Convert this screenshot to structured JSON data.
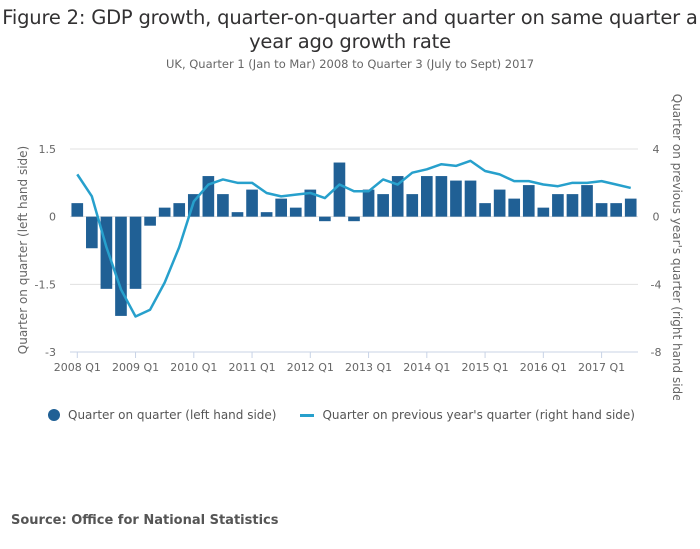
{
  "chart_data": {
    "type": "bar",
    "title": "Figure 2: GDP growth, quarter-on-quarter and quarter on same quarter a year ago growth rate",
    "subtitle": "UK, Quarter 1 (Jan to Mar) 2008 to Quarter 3 (July to Sept) 2017",
    "ylabel_left": "Quarter on quarter (left hand side)",
    "ylabel_right": "Quarter on previous year's quarter (right hand side)",
    "ylim_left": [
      -3,
      1.5
    ],
    "ylim_right": [
      -8,
      4
    ],
    "yticks_left": [
      "1.5",
      "0",
      "-1.5",
      "-3"
    ],
    "yticks_left_values": [
      1.5,
      0,
      -1.5,
      -3
    ],
    "yticks_right": [
      "4",
      "0",
      "-4",
      "-8"
    ],
    "yticks_right_values": [
      4,
      0,
      -4,
      -8
    ],
    "xtick_labels": [
      "2008 Q1",
      "2009 Q1",
      "2010 Q1",
      "2011 Q1",
      "2012 Q1",
      "2013 Q1",
      "2014 Q1",
      "2015 Q1",
      "2016 Q1",
      "2017 Q1"
    ],
    "grid": true,
    "legend_position": "bottom-left",
    "categories": [
      "2008 Q1",
      "2008 Q2",
      "2008 Q3",
      "2008 Q4",
      "2009 Q1",
      "2009 Q2",
      "2009 Q3",
      "2009 Q4",
      "2010 Q1",
      "2010 Q2",
      "2010 Q3",
      "2010 Q4",
      "2011 Q1",
      "2011 Q2",
      "2011 Q3",
      "2011 Q4",
      "2012 Q1",
      "2012 Q2",
      "2012 Q3",
      "2012 Q4",
      "2013 Q1",
      "2013 Q2",
      "2013 Q3",
      "2013 Q4",
      "2014 Q1",
      "2014 Q2",
      "2014 Q3",
      "2014 Q4",
      "2015 Q1",
      "2015 Q2",
      "2015 Q3",
      "2015 Q4",
      "2016 Q1",
      "2016 Q2",
      "2016 Q3",
      "2016 Q4",
      "2017 Q1",
      "2017 Q2",
      "2017 Q3"
    ],
    "series": [
      {
        "name": "Quarter on quarter (left hand side)",
        "type": "bar",
        "axis": "left",
        "color": "#206095",
        "values": [
          0.3,
          -0.7,
          -1.6,
          -2.2,
          -1.6,
          -0.2,
          0.2,
          0.3,
          0.5,
          0.9,
          0.5,
          0.1,
          0.6,
          0.1,
          0.4,
          0.2,
          0.6,
          -0.1,
          1.2,
          -0.1,
          0.6,
          0.5,
          0.9,
          0.5,
          0.9,
          0.9,
          0.8,
          0.8,
          0.3,
          0.6,
          0.4,
          0.7,
          0.2,
          0.5,
          0.5,
          0.7,
          0.3,
          0.3,
          0.4
        ]
      },
      {
        "name": "Quarter on previous year's quarter (right hand side)",
        "type": "line",
        "axis": "right",
        "color": "#27a0cc",
        "values": [
          2.5,
          1.2,
          -1.8,
          -4.3,
          -5.9,
          -5.5,
          -3.9,
          -1.8,
          0.9,
          1.9,
          2.2,
          2.0,
          2.0,
          1.4,
          1.2,
          1.3,
          1.4,
          1.1,
          1.9,
          1.5,
          1.5,
          2.2,
          1.9,
          2.6,
          2.8,
          3.1,
          3.0,
          3.3,
          2.7,
          2.5,
          2.1,
          2.1,
          1.9,
          1.8,
          2.0,
          2.0,
          2.1,
          1.9,
          1.7
        ]
      }
    ]
  },
  "source": "Source: Office for National Statistics"
}
